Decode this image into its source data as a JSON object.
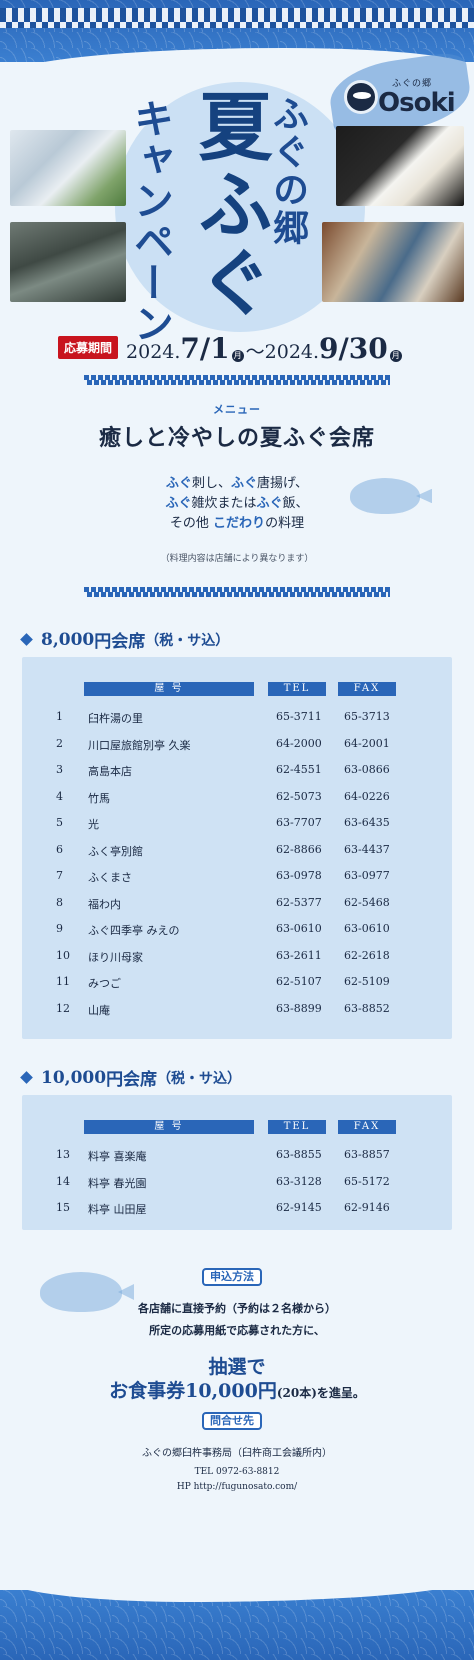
{
  "logo": {
    "name": "ふぐの郷",
    "word": "Osoki"
  },
  "title": {
    "small": "ふぐの郷",
    "big": "夏ふぐ",
    "campaign": "キャンペーン"
  },
  "period": {
    "label": "応募期間",
    "start_year": "2024.",
    "start_date": "7/1",
    "start_day": "月",
    "tilde": "〜",
    "end_year": "2024.",
    "end_date": "9/30",
    "end_day": "月"
  },
  "menu": {
    "label": "メニュー",
    "title": "癒しと冷やしの夏ふぐ会席",
    "line1_a": "ふぐ",
    "line1_b": "刺し、",
    "line1_c": "ふぐ",
    "line1_d": "唐揚げ、",
    "line2_a": "ふぐ",
    "line2_b": "雑炊または",
    "line2_c": "ふぐ",
    "line2_d": "飯、",
    "line3_a": "その他 ",
    "line3_b": "こだわり",
    "line3_c": "の料理",
    "note": "（料理内容は店舗により異なります）"
  },
  "table_headers": {
    "name": "屋 号",
    "tel": "TEL",
    "fax": "FAX"
  },
  "section1": {
    "price": "8,000",
    "unit": "円会席",
    "tax": "（税・サ込）",
    "rows": [
      {
        "no": "1",
        "name": "臼杵湯の里",
        "tel": "65-3711",
        "fax": "65-3713"
      },
      {
        "no": "2",
        "name": "川口屋旅館別亭 久楽",
        "tel": "64-2000",
        "fax": "64-2001"
      },
      {
        "no": "3",
        "name": "高島本店",
        "tel": "62-4551",
        "fax": "63-0866"
      },
      {
        "no": "4",
        "name": "竹馬",
        "tel": "62-5073",
        "fax": "64-0226"
      },
      {
        "no": "5",
        "name": "光",
        "tel": "63-7707",
        "fax": "63-6435"
      },
      {
        "no": "6",
        "name": "ふく亭別館",
        "tel": "62-8866",
        "fax": "63-4437"
      },
      {
        "no": "7",
        "name": "ふくまさ",
        "tel": "63-0978",
        "fax": "63-0977"
      },
      {
        "no": "8",
        "name": "福わ内",
        "tel": "62-5377",
        "fax": "62-5468"
      },
      {
        "no": "9",
        "name": "ふぐ四季亭 みえの",
        "tel": "63-0610",
        "fax": "63-0610"
      },
      {
        "no": "10",
        "name": "ほり川母家",
        "tel": "63-2611",
        "fax": "62-2618"
      },
      {
        "no": "11",
        "name": "みつご",
        "tel": "62-5107",
        "fax": "62-5109"
      },
      {
        "no": "12",
        "name": "山庵",
        "tel": "63-8899",
        "fax": "63-8852"
      }
    ]
  },
  "section2": {
    "price": "10,000",
    "unit": "円会席",
    "tax": "（税・サ込）",
    "rows": [
      {
        "no": "13",
        "name": "料亭 喜楽庵",
        "tel": "63-8855",
        "fax": "63-8857"
      },
      {
        "no": "14",
        "name": "料亭 春光園",
        "tel": "63-3128",
        "fax": "65-5172"
      },
      {
        "no": "15",
        "name": "料亭 山田屋",
        "tel": "62-9145",
        "fax": "62-9146"
      }
    ]
  },
  "apply": {
    "label": "申込方法",
    "line1": "各店舗に直接予約（予約は２名様から）",
    "line2": "所定の応募用紙で応募された方に、",
    "lottery": "抽選で",
    "prize_a": "お食事券",
    "prize_b": "10,000",
    "prize_c": "円",
    "prize_d": "(20本)",
    "prize_e": "を進呈。"
  },
  "contact": {
    "label": "問合せ先",
    "org": "ふぐの郷臼杵事務局（臼杵商工会議所内）",
    "tel": "TEL 0972-63-8812",
    "hp": "HP http://fugunosato.com/"
  },
  "colors": {
    "accent": "#2a66b8",
    "red": "#c8141e",
    "navy": "#1b2a44"
  }
}
